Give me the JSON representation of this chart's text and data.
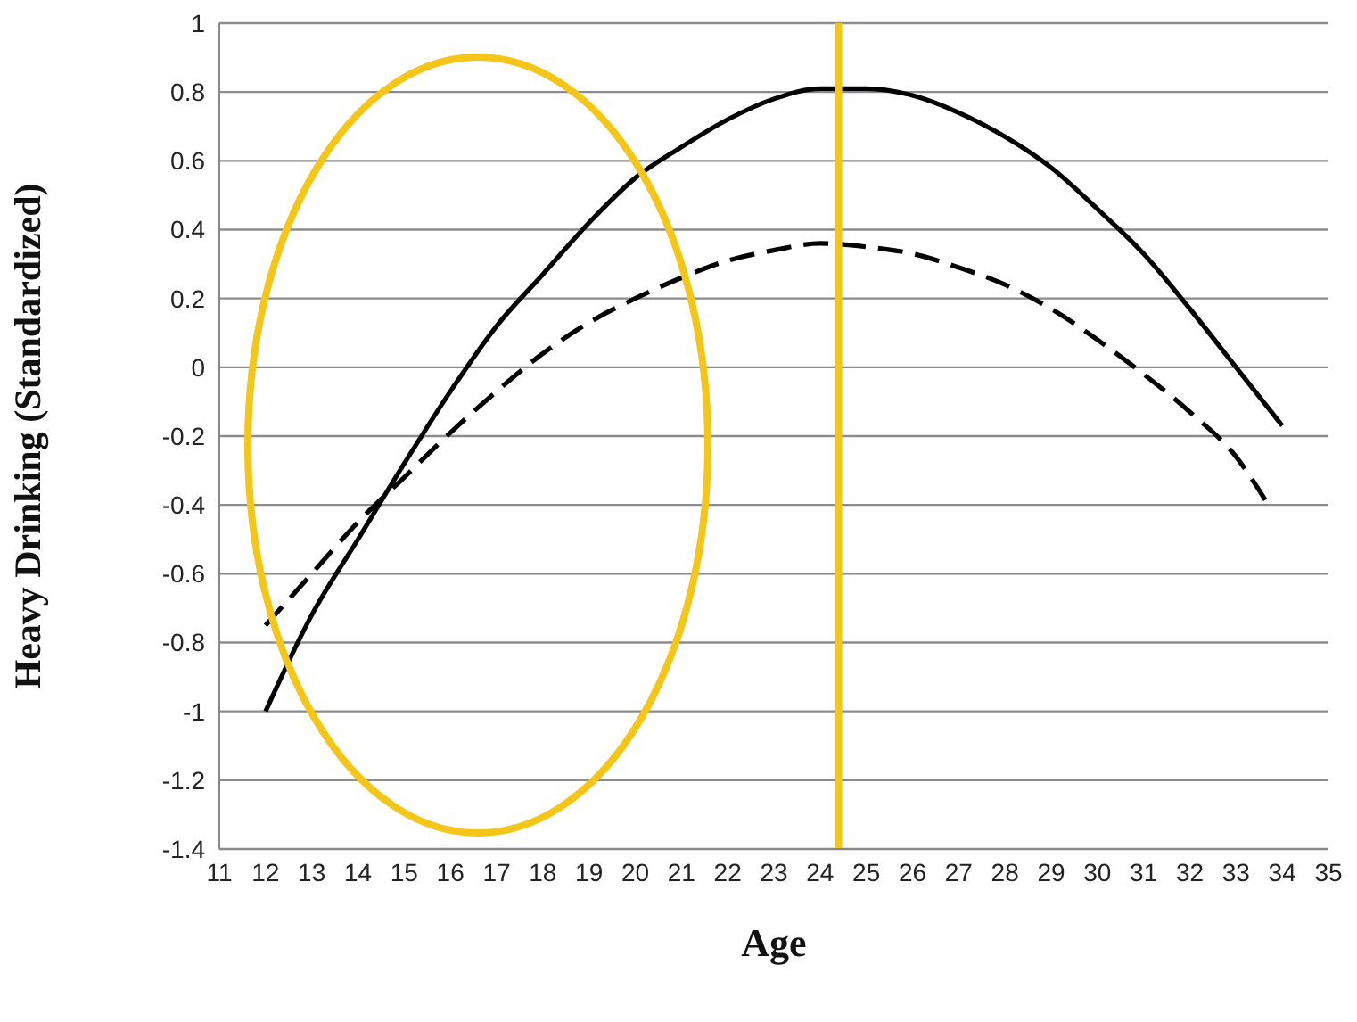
{
  "chart_data": {
    "type": "line",
    "xlabel": "Age",
    "ylabel": "Heavy Drinking (Standardized)",
    "xlim": [
      11,
      35
    ],
    "xticks": [
      11,
      12,
      13,
      14,
      15,
      16,
      17,
      18,
      19,
      20,
      21,
      22,
      23,
      24,
      25,
      26,
      27,
      28,
      29,
      30,
      31,
      32,
      33,
      34,
      35
    ],
    "ylim": [
      -1.4,
      1
    ],
    "yticks": [
      -1.4,
      -1.2,
      -1,
      -0.8,
      -0.6,
      -0.4,
      -0.2,
      0,
      0.2,
      0.4,
      0.6,
      0.8,
      1
    ],
    "grid": "y",
    "marker": "none",
    "legend": false,
    "series": [
      {
        "color": "#000000",
        "line_style": "solid",
        "x": [
          12,
          13,
          14,
          15,
          16,
          17,
          18,
          19,
          20,
          21,
          22,
          23,
          24,
          25,
          26,
          27,
          28,
          29,
          30,
          31,
          32,
          33,
          34
        ],
        "values": [
          -1.0,
          -0.72,
          -0.5,
          -0.28,
          -0.07,
          0.12,
          0.27,
          0.42,
          0.55,
          0.64,
          0.72,
          0.78,
          0.81,
          0.81,
          0.79,
          0.74,
          0.67,
          0.58,
          0.46,
          0.33,
          0.17,
          0.0,
          -0.17
        ]
      },
      {
        "color": "#000000",
        "line_style": "dashed",
        "x": [
          12,
          13,
          14,
          15,
          16,
          17,
          18,
          19,
          20,
          21,
          22,
          23,
          24,
          25,
          26,
          27,
          28,
          29,
          30,
          31,
          32,
          33,
          33.7
        ],
        "values": [
          -0.75,
          -0.6,
          -0.45,
          -0.32,
          -0.19,
          -0.07,
          0.04,
          0.13,
          0.2,
          0.26,
          0.31,
          0.34,
          0.36,
          0.35,
          0.33,
          0.29,
          0.24,
          0.17,
          0.08,
          -0.02,
          -0.13,
          -0.26,
          -0.4
        ]
      }
    ],
    "ref_lines": [
      {
        "axis": "x",
        "value": 24.4,
        "color": "#f5c518"
      }
    ]
  }
}
